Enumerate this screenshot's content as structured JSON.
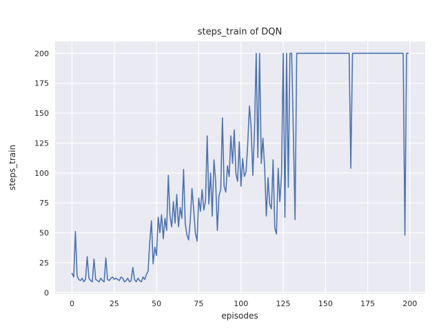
{
  "chart_data": {
    "type": "line",
    "title": "steps_train of DQN",
    "xlabel": "episodes",
    "ylabel": "steps_train",
    "x_start": 0,
    "xticks": [
      0,
      25,
      50,
      75,
      100,
      125,
      150,
      175,
      200
    ],
    "yticks": [
      0,
      25,
      50,
      75,
      100,
      125,
      150,
      175,
      200
    ],
    "xlim": [
      -10,
      209
    ],
    "ylim": [
      -1,
      210
    ],
    "grid": true,
    "legend": false,
    "plot_bg": "#eaeaf2",
    "grid_color": "#ffffff",
    "figure_bg": "#ffffff",
    "tick_color": "#262626",
    "series": [
      {
        "name": "steps_train",
        "color": "#4c72b0",
        "values": [
          16,
          13,
          51,
          14,
          11,
          10,
          12,
          9,
          11,
          30,
          12,
          10,
          9,
          28,
          11,
          10,
          9,
          12,
          10,
          9,
          29,
          11,
          10,
          12,
          13,
          11,
          12,
          11,
          10,
          13,
          12,
          9,
          10,
          12,
          9,
          10,
          21,
          11,
          9,
          12,
          10,
          9,
          13,
          11,
          15,
          18,
          42,
          60,
          24,
          38,
          31,
          63,
          50,
          65,
          45,
          62,
          52,
          98,
          64,
          55,
          76,
          58,
          82,
          55,
          71,
          62,
          103,
          58,
          48,
          44,
          61,
          87,
          69,
          50,
          43,
          79,
          68,
          86,
          69,
          76,
          131,
          74,
          100,
          64,
          111,
          94,
          52,
          81,
          86,
          146,
          89,
          84,
          106,
          97,
          131,
          108,
          136,
          99,
          93,
          126,
          89,
          112,
          97,
          101,
          124,
          156,
          139,
          98,
          134,
          200,
          113,
          200,
          108,
          129,
          104,
          64,
          96,
          74,
          70,
          111,
          54,
          49,
          104,
          76,
          99,
          200,
          63,
          200,
          88,
          200,
          200,
          134,
          61,
          200,
          200,
          200,
          200,
          200,
          200,
          200,
          200,
          200,
          200,
          200,
          200,
          200,
          200,
          200,
          200,
          200,
          200,
          200,
          200,
          200,
          200,
          200,
          200,
          200,
          200,
          200,
          200,
          200,
          200,
          200,
          200,
          104,
          200,
          200,
          200,
          200,
          200,
          200,
          200,
          200,
          200,
          200,
          200,
          200,
          200,
          200,
          200,
          200,
          200,
          200,
          200,
          200,
          200,
          200,
          200,
          200,
          200,
          200,
          200,
          200,
          200,
          200,
          200,
          48,
          200,
          200
        ]
      }
    ]
  }
}
